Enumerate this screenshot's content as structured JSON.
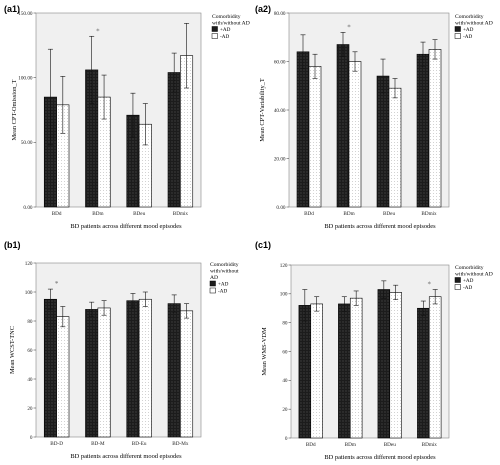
{
  "colors": {
    "plot_bg": "#f0f0f0",
    "bar_dark": "#1c1c1c",
    "bar_light": "#ffffff",
    "outline": "#000000"
  },
  "chart_data": [
    {
      "panel": "(a1)",
      "type": "bar",
      "ylabel": "Mean CPT-Omission_T",
      "xlabel": "BD patients across different mood episodes",
      "categories": [
        "BDd",
        "BDm",
        "BDeu",
        "BDmix"
      ],
      "ylim": [
        0,
        150
      ],
      "yticks": [
        "0.00",
        "50.00",
        "100.00",
        "150.00"
      ],
      "ytick_values": [
        0,
        50,
        100,
        150
      ],
      "legend_title": "Comorbidity with/without AD",
      "legend_position": "top-right",
      "series": [
        {
          "name": "+AD",
          "values": [
            85,
            106,
            71,
            104
          ],
          "err": [
            37,
            26,
            17,
            15
          ]
        },
        {
          "name": "-AD",
          "values": [
            79,
            85,
            64,
            117
          ],
          "err": [
            22,
            17,
            16,
            25
          ]
        }
      ],
      "significance": [
        {
          "category": "BDm",
          "label": "*"
        }
      ],
      "grid": false
    },
    {
      "panel": "(a2)",
      "type": "bar",
      "ylabel": "Mean CPT-Variability_T",
      "xlabel": "BD patients across different mood episodes",
      "categories": [
        "BDd",
        "BDm",
        "BDeu",
        "BDmix"
      ],
      "ylim": [
        0,
        80
      ],
      "yticks": [
        "0.00",
        "20.00",
        "40.00",
        "60.00",
        "80.00"
      ],
      "ytick_values": [
        0,
        20,
        40,
        60,
        80
      ],
      "legend_title": "Comorbidity with/without AD",
      "legend_position": "top-right",
      "series": [
        {
          "name": "+AD",
          "values": [
            64,
            67,
            54,
            63
          ],
          "err": [
            7,
            5,
            7,
            5
          ]
        },
        {
          "name": "-AD",
          "values": [
            58,
            60,
            49,
            65
          ],
          "err": [
            5,
            4,
            4,
            4
          ]
        }
      ],
      "significance": [
        {
          "category": "BDm",
          "label": "*"
        }
      ],
      "grid": false
    },
    {
      "panel": "(b1)",
      "type": "bar",
      "ylabel": "Mean WCST-TNC",
      "xlabel": "BD patients across different mood episodes",
      "categories": [
        "BD-D",
        "BD-M",
        "BD-Eu",
        "BD-Mx"
      ],
      "ylim": [
        0,
        120
      ],
      "yticks": [
        "0",
        "20",
        "40",
        "60",
        "80",
        "100",
        "120"
      ],
      "ytick_values": [
        0,
        20,
        40,
        60,
        80,
        100,
        120
      ],
      "legend_title": "Comorbidity with/without AD",
      "legend_position": "top-right",
      "series": [
        {
          "name": "+AD",
          "values": [
            95,
            88,
            94,
            92
          ],
          "err": [
            7,
            5,
            5,
            6
          ]
        },
        {
          "name": "-AD",
          "values": [
            83,
            89,
            95,
            87
          ],
          "err": [
            7,
            5,
            5,
            5
          ]
        }
      ],
      "significance": [
        {
          "category": "BD-D",
          "label": "*"
        }
      ],
      "grid": false
    },
    {
      "panel": "(c1)",
      "type": "bar",
      "ylabel": "Mean WMS-VDM",
      "xlabel": "BD patients across different mood episodes",
      "categories": [
        "BDd",
        "BDm",
        "BDeu",
        "BDmix"
      ],
      "ylim": [
        0,
        120
      ],
      "yticks": [
        "0",
        "20",
        "40",
        "60",
        "80",
        "100",
        "120"
      ],
      "ytick_values": [
        0,
        20,
        40,
        60,
        80,
        100,
        120
      ],
      "legend_title": "Comorbidity with/without AD",
      "legend_position": "top-right",
      "series": [
        {
          "name": "+AD",
          "values": [
            92,
            93,
            103,
            90
          ],
          "err": [
            11,
            5,
            6,
            5
          ]
        },
        {
          "name": "-AD",
          "values": [
            93,
            97,
            101,
            98
          ],
          "err": [
            5,
            5,
            5,
            5
          ]
        }
      ],
      "significance": [
        {
          "category": "BDmix",
          "label": "*"
        }
      ],
      "grid": false
    }
  ]
}
